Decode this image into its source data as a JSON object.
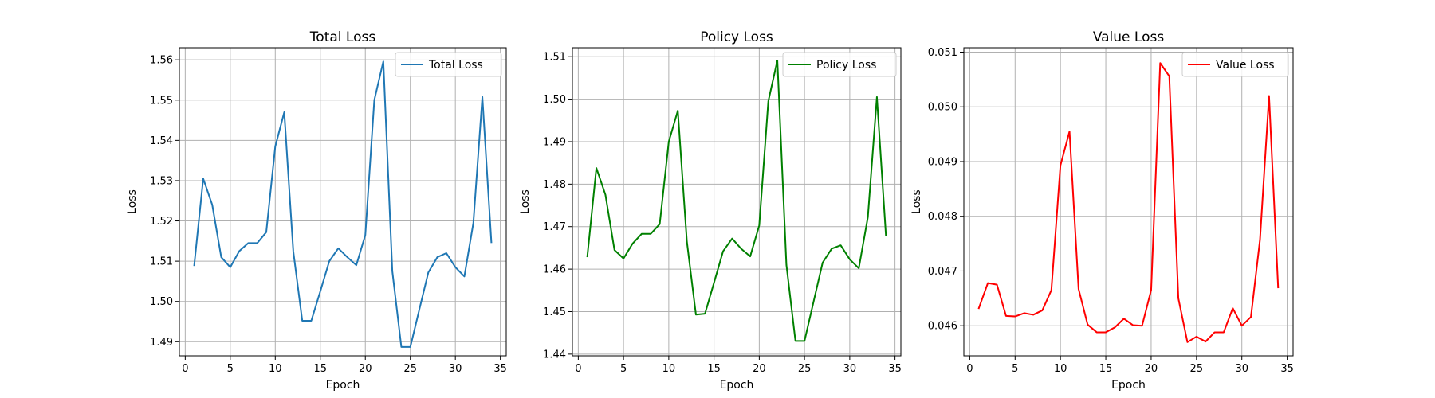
{
  "chart_data": [
    {
      "type": "line",
      "title": "Total Loss",
      "xlabel": "Epoch",
      "ylabel": "Loss",
      "xlim": [
        -0.65,
        35.65
      ],
      "ylim": [
        1.4865,
        1.563
      ],
      "xticks": [
        0,
        5,
        10,
        15,
        20,
        25,
        30,
        35
      ],
      "yticks": [
        1.49,
        1.5,
        1.51,
        1.52,
        1.53,
        1.54,
        1.55,
        1.56
      ],
      "ytick_decimals": 2,
      "grid": true,
      "legend": "top-right",
      "series": [
        {
          "name": "Total Loss",
          "color": "#1f77b4",
          "x": [
            1,
            2,
            3,
            4,
            5,
            6,
            7,
            8,
            9,
            10,
            11,
            12,
            13,
            14,
            15,
            16,
            17,
            18,
            19,
            20,
            21,
            22,
            23,
            24,
            25,
            26,
            27,
            28,
            29,
            30,
            31,
            32,
            33,
            34
          ],
          "y": [
            1.509,
            1.5305,
            1.524,
            1.511,
            1.5085,
            1.5125,
            1.5145,
            1.5145,
            1.5172,
            1.5385,
            1.547,
            1.5125,
            1.4952,
            1.4952,
            1.5025,
            1.51,
            1.5132,
            1.511,
            1.509,
            1.5165,
            1.55,
            1.5596,
            1.5075,
            1.4887,
            1.4887,
            1.498,
            1.5072,
            1.511,
            1.512,
            1.5085,
            1.5062,
            1.5195,
            1.5508,
            1.5147
          ]
        }
      ]
    },
    {
      "type": "line",
      "title": "Policy Loss",
      "xlabel": "Epoch",
      "ylabel": "Loss",
      "xlim": [
        -0.65,
        35.65
      ],
      "ylim": [
        1.4396,
        1.5121
      ],
      "xticks": [
        0,
        5,
        10,
        15,
        20,
        25,
        30,
        35
      ],
      "yticks": [
        1.44,
        1.45,
        1.46,
        1.47,
        1.48,
        1.49,
        1.5,
        1.51
      ],
      "ytick_decimals": 2,
      "grid": true,
      "legend": "top-right",
      "series": [
        {
          "name": "Policy Loss",
          "color": "#008000",
          "x": [
            1,
            2,
            3,
            4,
            5,
            6,
            7,
            8,
            9,
            10,
            11,
            12,
            13,
            14,
            15,
            16,
            17,
            18,
            19,
            20,
            21,
            22,
            23,
            24,
            25,
            26,
            27,
            28,
            29,
            30,
            31,
            32,
            33,
            34
          ],
          "y": [
            1.463,
            1.4838,
            1.4775,
            1.4645,
            1.4625,
            1.466,
            1.4683,
            1.4683,
            1.4706,
            1.49,
            1.4973,
            1.4665,
            1.4493,
            1.4495,
            1.4568,
            1.4642,
            1.4672,
            1.4648,
            1.463,
            1.4703,
            1.4995,
            1.5091,
            1.461,
            1.4431,
            1.4431,
            1.4523,
            1.4615,
            1.4648,
            1.4656,
            1.4623,
            1.4602,
            1.4722,
            1.5005,
            1.4679
          ]
        }
      ]
    },
    {
      "type": "line",
      "title": "Value Loss",
      "xlabel": "Epoch",
      "ylabel": "Loss",
      "xlim": [
        -0.65,
        35.65
      ],
      "ylim": [
        0.04545,
        0.05108
      ],
      "xticks": [
        0,
        5,
        10,
        15,
        20,
        25,
        30,
        35
      ],
      "yticks": [
        0.046,
        0.047,
        0.048,
        0.049,
        0.05,
        0.051
      ],
      "ytick_decimals": 3,
      "grid": true,
      "legend": "top-right",
      "series": [
        {
          "name": "Value Loss",
          "color": "#ff0000",
          "x": [
            1,
            2,
            3,
            4,
            5,
            6,
            7,
            8,
            9,
            10,
            11,
            12,
            13,
            14,
            15,
            16,
            17,
            18,
            19,
            20,
            21,
            22,
            23,
            24,
            25,
            26,
            27,
            28,
            29,
            30,
            31,
            32,
            33,
            34
          ],
          "y": [
            0.04632,
            0.04678,
            0.04675,
            0.04618,
            0.04617,
            0.04623,
            0.0462,
            0.04628,
            0.04665,
            0.04893,
            0.04955,
            0.04667,
            0.04602,
            0.04588,
            0.04588,
            0.04597,
            0.04613,
            0.04601,
            0.046,
            0.04665,
            0.0508,
            0.05056,
            0.0465,
            0.0457,
            0.0458,
            0.04571,
            0.04588,
            0.04588,
            0.04632,
            0.046,
            0.04616,
            0.04757,
            0.0502,
            0.0467
          ]
        }
      ]
    }
  ]
}
